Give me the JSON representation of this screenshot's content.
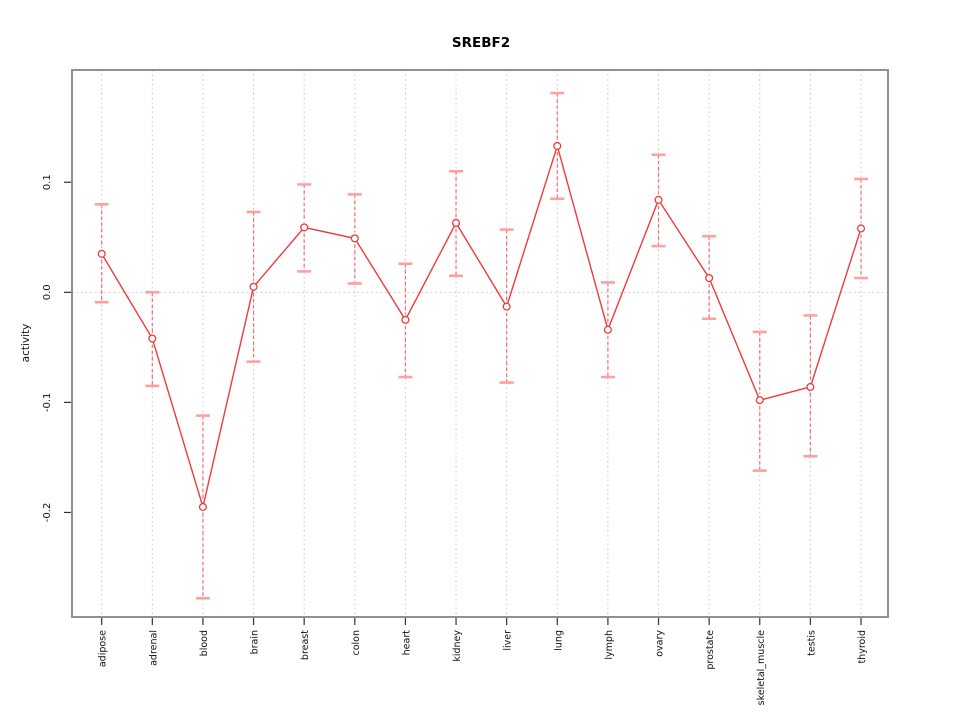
{
  "chart_data": {
    "type": "line",
    "title": "SREBF2",
    "ylabel": "activity",
    "xlabel": "",
    "legend": "none",
    "grid": {
      "vertical_dotted_per_category": true,
      "zero_line_dotted": true,
      "horizontal_gridlines": false
    },
    "categories": [
      "adipose",
      "adrenal",
      "blood",
      "brain",
      "breast",
      "colon",
      "heart",
      "kidney",
      "liver",
      "lung",
      "lymph",
      "ovary",
      "prostate",
      "skeletal_muscle",
      "testis",
      "thyroid"
    ],
    "series": [
      {
        "name": "activity",
        "values": [
          0.035,
          -0.042,
          -0.195,
          0.005,
          0.059,
          0.049,
          -0.025,
          0.063,
          -0.013,
          0.133,
          -0.034,
          0.084,
          0.013,
          -0.098,
          -0.086,
          0.058
        ],
        "error_high": [
          0.08,
          0.0,
          -0.112,
          0.073,
          0.098,
          0.089,
          0.026,
          0.11,
          0.057,
          0.181,
          0.009,
          0.125,
          0.051,
          -0.036,
          -0.021,
          0.103
        ],
        "error_low": [
          -0.009,
          -0.085,
          -0.278,
          -0.063,
          0.019,
          0.008,
          -0.077,
          0.015,
          -0.082,
          0.085,
          -0.077,
          0.042,
          -0.024,
          -0.162,
          -0.149,
          0.013
        ]
      }
    ],
    "yticks": [
      {
        "label": "0.1",
        "value": 0.1
      },
      {
        "label": "0.0",
        "value": 0.0
      },
      {
        "label": "-0.1",
        "value": -0.1
      },
      {
        "label": "-0.2",
        "value": -0.2
      }
    ],
    "ylim": [
      -0.295,
      0.202
    ],
    "colors": {
      "point": "#ee3b3b",
      "series_line": "#ee3b3b",
      "error_line": "#f56c6c",
      "error_cap": "#ffa0a0",
      "grid": "#c8c8c8",
      "box": "#909090",
      "tick": "#333333",
      "text": "#111111"
    }
  }
}
